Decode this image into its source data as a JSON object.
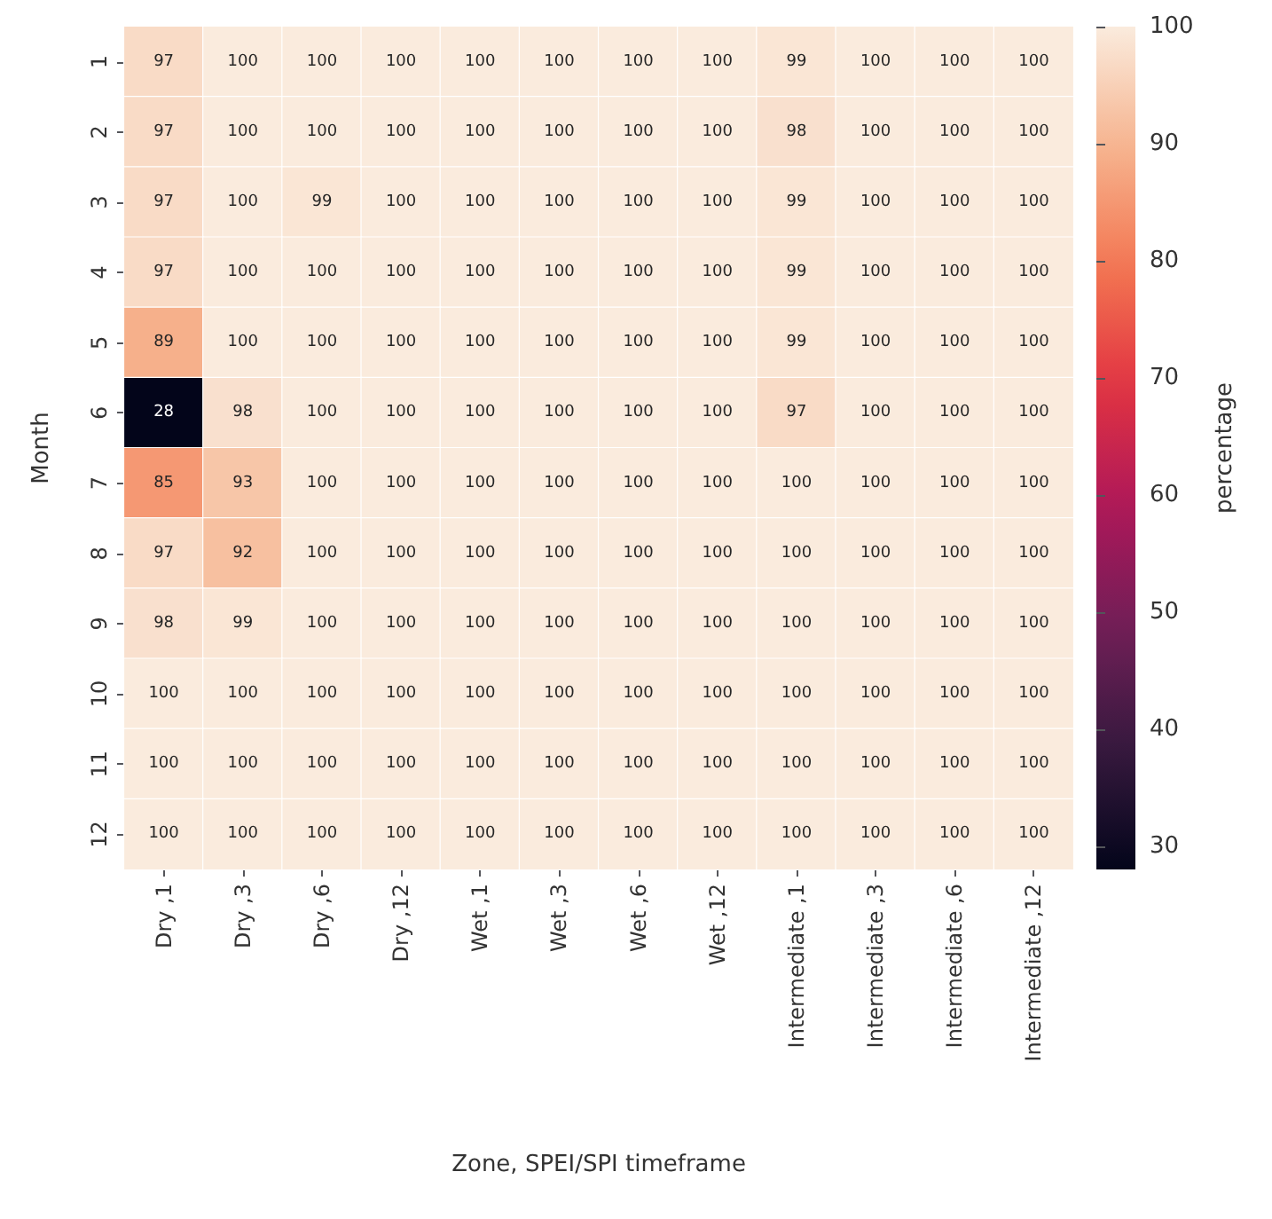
{
  "chart_data": {
    "type": "heatmap",
    "xlabel": "Zone, SPEI/SPI timeframe",
    "ylabel": "Month",
    "clabel": "percentage",
    "categories": [
      "Dry ,1",
      "Dry ,3",
      "Dry ,6",
      "Dry ,12",
      "Wet ,1",
      "Wet ,3",
      "Wet ,6",
      "Wet ,12",
      "Intermediate ,1",
      "Intermediate ,3",
      "Intermediate ,6",
      "Intermediate ,12"
    ],
    "y_categories": [
      "1",
      "2",
      "3",
      "4",
      "5",
      "6",
      "7",
      "8",
      "9",
      "10",
      "11",
      "12"
    ],
    "cells": [
      [
        97,
        100,
        100,
        100,
        100,
        100,
        100,
        100,
        99,
        100,
        100,
        100
      ],
      [
        97,
        100,
        100,
        100,
        100,
        100,
        100,
        100,
        98,
        100,
        100,
        100
      ],
      [
        97,
        100,
        99,
        100,
        100,
        100,
        100,
        100,
        99,
        100,
        100,
        100
      ],
      [
        97,
        100,
        100,
        100,
        100,
        100,
        100,
        100,
        99,
        100,
        100,
        100
      ],
      [
        89,
        100,
        100,
        100,
        100,
        100,
        100,
        100,
        99,
        100,
        100,
        100
      ],
      [
        28,
        98,
        100,
        100,
        100,
        100,
        100,
        100,
        97,
        100,
        100,
        100
      ],
      [
        85,
        93,
        100,
        100,
        100,
        100,
        100,
        100,
        100,
        100,
        100,
        100
      ],
      [
        97,
        92,
        100,
        100,
        100,
        100,
        100,
        100,
        100,
        100,
        100,
        100
      ],
      [
        98,
        99,
        100,
        100,
        100,
        100,
        100,
        100,
        100,
        100,
        100,
        100
      ],
      [
        100,
        100,
        100,
        100,
        100,
        100,
        100,
        100,
        100,
        100,
        100,
        100
      ],
      [
        100,
        100,
        100,
        100,
        100,
        100,
        100,
        100,
        100,
        100,
        100,
        100
      ],
      [
        100,
        100,
        100,
        100,
        100,
        100,
        100,
        100,
        100,
        100,
        100,
        100
      ]
    ],
    "data_labels": true,
    "clim": [
      28,
      100
    ],
    "cticks": [
      30,
      40,
      50,
      60,
      70,
      80,
      90,
      100
    ]
  }
}
